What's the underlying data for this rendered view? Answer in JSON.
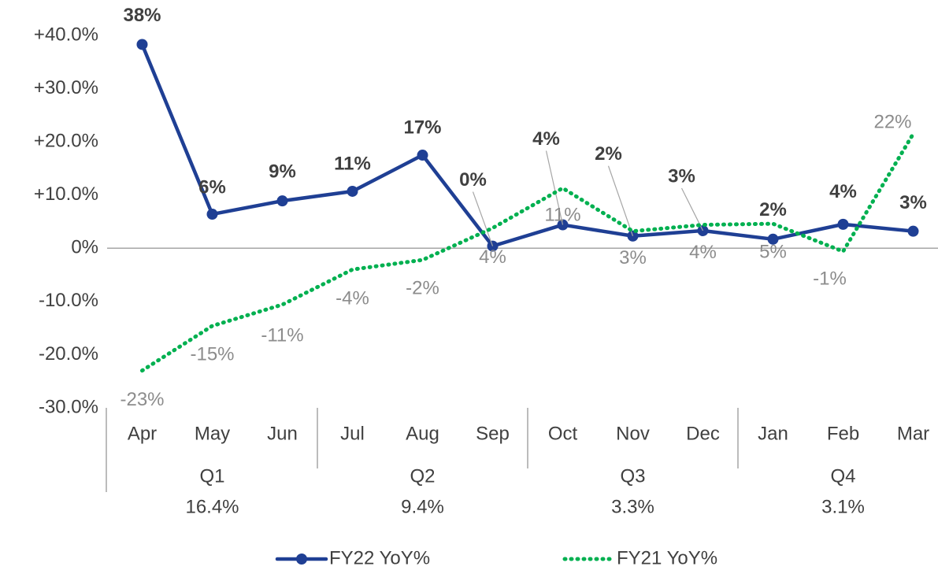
{
  "chart_data": {
    "type": "line",
    "categories": [
      "Apr",
      "May",
      "Jun",
      "Jul",
      "Aug",
      "Sep",
      "Oct",
      "Nov",
      "Dec",
      "Jan",
      "Feb",
      "Mar"
    ],
    "groups": [
      "Q1",
      "Q2",
      "Q3",
      "Q4"
    ],
    "group_totals": [
      "16.4%",
      "9.4%",
      "3.3%",
      "3.1%"
    ],
    "series": [
      {
        "name": "FY22 YoY%",
        "color": "#1f3f94",
        "style": "solid",
        "markers": true,
        "values": [
          38.3,
          6.4,
          8.9,
          10.7,
          17.5,
          0.4,
          4.4,
          2.3,
          3.3,
          1.7,
          4.5,
          3.2
        ],
        "value_labels": [
          "38%",
          "6%",
          "9%",
          "11%",
          "17%",
          "0%",
          "4%",
          "2%",
          "3%",
          "2%",
          "4%",
          "3%"
        ]
      },
      {
        "name": "FY21 YoY%",
        "color": "#00b050",
        "style": "dotted",
        "markers": false,
        "values": [
          -23,
          -14.6,
          -10.6,
          -4,
          -2.2,
          3.8,
          11.3,
          3.2,
          4.4,
          4.6,
          -0.6,
          21.5
        ],
        "value_labels": [
          "-23%",
          "-15%",
          "-11%",
          "-4%",
          "-2%",
          "4%",
          "11%",
          "3%",
          "4%",
          "5%",
          "-1%",
          "22%"
        ]
      }
    ],
    "ylim": [
      -30,
      40
    ],
    "yticks": [
      {
        "value": -30,
        "label": "-30.0%"
      },
      {
        "value": -20,
        "label": "-20.0%"
      },
      {
        "value": -10,
        "label": "-10.0%"
      },
      {
        "value": 0,
        "label": "0%"
      },
      {
        "value": 10,
        "label": "+10.0%"
      },
      {
        "value": 20,
        "label": "+20.0%"
      },
      {
        "value": 30,
        "label": "+30.0%"
      },
      {
        "value": 40,
        "label": "+40.0%"
      }
    ],
    "legend": "bottom"
  }
}
